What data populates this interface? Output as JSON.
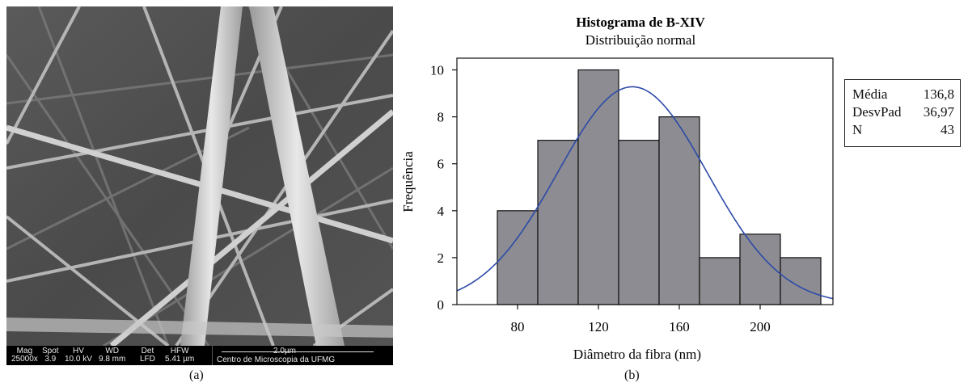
{
  "sem": {
    "info_headers": [
      "Mag",
      "Spot",
      "HV",
      "WD",
      "Det",
      "HFW"
    ],
    "info_values": [
      "25000x",
      "3.9",
      "10.0 kV",
      "9.8 mm",
      "LFD",
      "5.41 µm"
    ],
    "scale_bar": "2.0µm",
    "lab": "Centro de Microscopia da UFMG"
  },
  "captions": {
    "a": "(a)",
    "b": "(b)"
  },
  "stats": [
    {
      "key": "Média",
      "value": "136,8"
    },
    {
      "key": "DesvPad",
      "value": "36,97"
    },
    {
      "key": "N",
      "value": "43"
    }
  ],
  "chart_data": {
    "type": "bar",
    "title": "Histograma de B-XIV",
    "subtitle": "Distribuição normal",
    "xlabel": "Diâmetro da fibra (nm)",
    "ylabel": "Frequência",
    "bin_edges": [
      70,
      90,
      110,
      130,
      150,
      170,
      190,
      210,
      230
    ],
    "values": [
      4,
      7,
      10,
      7,
      8,
      2,
      3,
      2
    ],
    "xlim": [
      50,
      236
    ],
    "ylim": [
      0,
      10.5
    ],
    "xticks": [
      80,
      120,
      160,
      200
    ],
    "yticks": [
      0,
      2,
      4,
      6,
      8,
      10
    ],
    "fit_curve": {
      "type": "normal",
      "mean": 136.8,
      "sd": 36.97,
      "n": 43
    },
    "bar_color": "#8c8c92",
    "curve_color": "#2d4aa8",
    "grid": false
  }
}
